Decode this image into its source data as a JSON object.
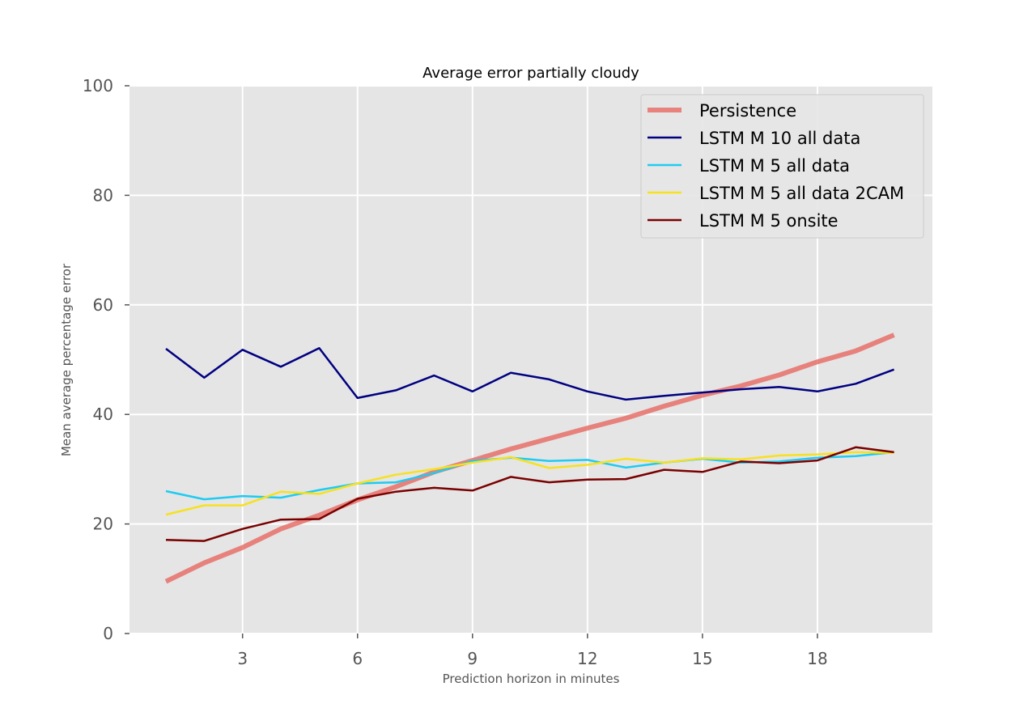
{
  "chart_data": {
    "type": "line",
    "title": "Average error partially cloudy",
    "xlabel": "Prediction horizon in minutes",
    "ylabel": "Mean average percentage error",
    "xlim": [
      0.05,
      21.0
    ],
    "ylim": [
      0,
      100
    ],
    "xticks": [
      3,
      6,
      9,
      12,
      15,
      18
    ],
    "yticks": [
      0,
      20,
      40,
      60,
      80,
      100
    ],
    "grid": true,
    "legend_position": "top-right",
    "x": [
      1,
      2,
      3,
      4,
      5,
      6,
      7,
      8,
      9,
      10,
      11,
      12,
      13,
      14,
      15,
      16,
      17,
      18,
      19,
      20
    ],
    "series": [
      {
        "name": "Persistence",
        "color": "#e8706a",
        "values": [
          9.5,
          12.9,
          15.7,
          19.1,
          21.6,
          24.4,
          26.8,
          29.5,
          31.6,
          33.7,
          35.6,
          37.5,
          39.3,
          41.5,
          43.5,
          45.2,
          47.2,
          49.6,
          51.6,
          54.5
        ]
      },
      {
        "name": "LSTM M 10 all data",
        "color": "#000080",
        "values": [
          52.0,
          46.7,
          51.8,
          48.7,
          52.1,
          43.0,
          44.4,
          47.1,
          44.2,
          47.6,
          46.4,
          44.2,
          42.7,
          43.4,
          44.0,
          44.6,
          45.0,
          44.2,
          45.6,
          48.2
        ]
      },
      {
        "name": "LSTM M 5 all data",
        "color": "#1ecbf2",
        "values": [
          26.0,
          24.5,
          25.1,
          24.8,
          26.2,
          27.4,
          27.6,
          29.3,
          31.5,
          32.1,
          31.5,
          31.7,
          30.3,
          31.2,
          31.9,
          31.2,
          31.4,
          32.1,
          32.4,
          33.1
        ]
      },
      {
        "name": "LSTM M 5 all data 2CAM",
        "color": "#f7e11e",
        "values": [
          21.7,
          23.4,
          23.4,
          25.9,
          25.5,
          27.4,
          29.0,
          30.0,
          31.2,
          32.2,
          30.2,
          30.8,
          31.9,
          31.2,
          32.0,
          31.8,
          32.5,
          32.7,
          33.1,
          33.0
        ]
      },
      {
        "name": "LSTM M 5 onsite",
        "color": "#7a0000",
        "values": [
          17.1,
          16.9,
          19.1,
          20.8,
          20.9,
          24.6,
          25.9,
          26.6,
          26.1,
          28.6,
          27.6,
          28.1,
          28.2,
          29.9,
          29.5,
          31.4,
          31.1,
          31.6,
          34.0,
          33.1
        ]
      }
    ]
  }
}
